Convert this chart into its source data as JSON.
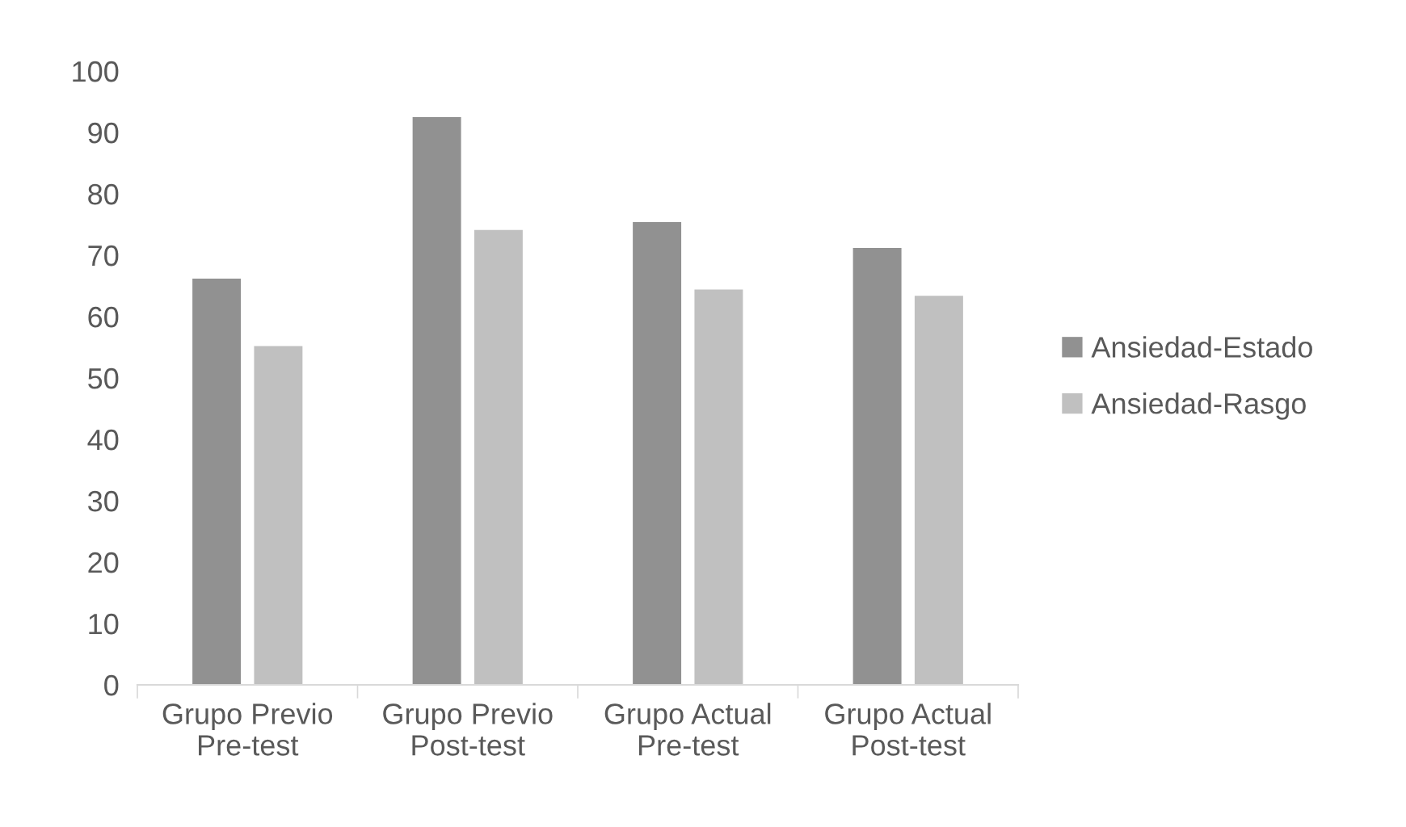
{
  "chart_data": {
    "type": "bar",
    "categories": [
      "Grupo Previo\nPre-test",
      "Grupo Previo\nPost-test",
      "Grupo Actual\nPre-test",
      "Grupo Actual\nPost-test"
    ],
    "series": [
      {
        "name": "Ansiedad-Estado",
        "color": "#919191",
        "values": [
          66.2,
          92.5,
          75.4,
          71.2
        ]
      },
      {
        "name": "Ansiedad-Rasgo",
        "color": "#c0c0c0",
        "values": [
          55.2,
          74.1,
          64.4,
          63.4
        ]
      }
    ],
    "ylim": [
      0,
      100
    ],
    "yticks": [
      0,
      10,
      20,
      30,
      40,
      50,
      60,
      70,
      80,
      90,
      100
    ],
    "grid": false,
    "legend": "right"
  }
}
